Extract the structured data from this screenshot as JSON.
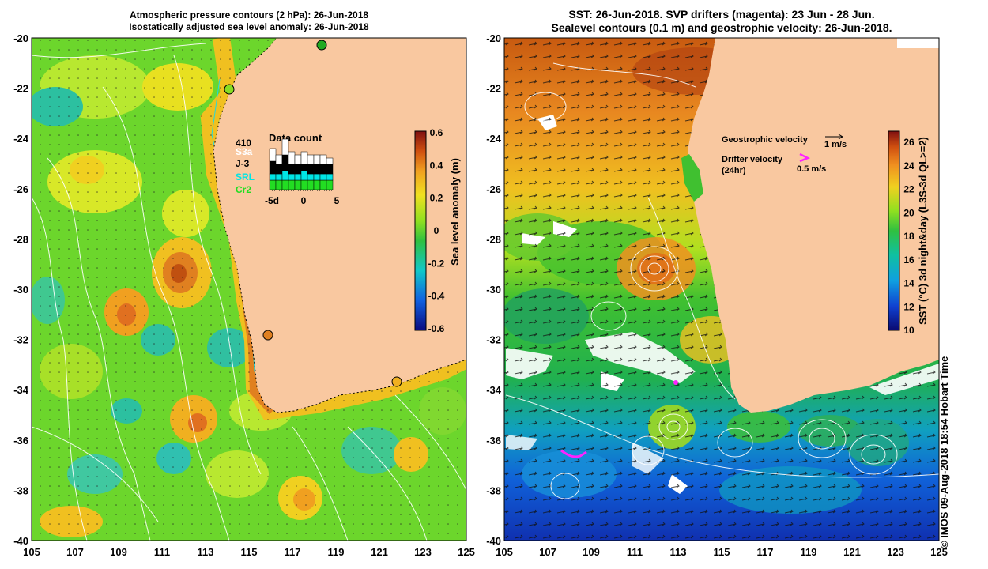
{
  "left_panel": {
    "title_line1": "Atmospheric pressure contours (2 hPa): 26-Jun-2018",
    "title_line2": "Isostatically adjusted sea level anomaly: 26-Jun-2018",
    "lat_labels": [
      "-20",
      "-22",
      "-24",
      "-26",
      "-28",
      "-30",
      "-32",
      "-34",
      "-36",
      "-38",
      "-40"
    ],
    "lon_labels": [
      "105",
      "107",
      "109",
      "111",
      "113",
      "115",
      "117",
      "119",
      "121",
      "123",
      "125"
    ],
    "colorbar": {
      "label": "Sea level anomaly (m)",
      "ticks": [
        "0.6",
        "0.4",
        "0.2",
        "0",
        "-0.2",
        "-0.4",
        "-0.6"
      ]
    },
    "data_count": {
      "title": "Data count",
      "total": "410",
      "legend": [
        {
          "name": "S3a",
          "color": "#ffffff"
        },
        {
          "name": "J-3",
          "color": "#000000"
        },
        {
          "name": "SRL",
          "color": "#00e5e5"
        },
        {
          "name": "Cr2",
          "color": "#22dd22"
        }
      ],
      "axis_labels": [
        "-5d",
        "0",
        "5"
      ],
      "bars": [
        {
          "day": -5,
          "cr2": 3,
          "srl": 2,
          "j3": 4,
          "s3a": 4
        },
        {
          "day": -4,
          "cr2": 3,
          "srl": 2,
          "j3": 3,
          "s3a": 3
        },
        {
          "day": -3,
          "cr2": 3,
          "srl": 3,
          "j3": 5,
          "s3a": 5
        },
        {
          "day": -2,
          "cr2": 3,
          "srl": 2,
          "j3": 3,
          "s3a": 4
        },
        {
          "day": -1,
          "cr2": 3,
          "srl": 2,
          "j3": 3,
          "s3a": 3
        },
        {
          "day": 0,
          "cr2": 3,
          "srl": 3,
          "j3": 2,
          "s3a": 4
        },
        {
          "day": 1,
          "cr2": 3,
          "srl": 2,
          "j3": 3,
          "s3a": 3
        },
        {
          "day": 2,
          "cr2": 3,
          "srl": 2,
          "j3": 3,
          "s3a": 3
        },
        {
          "day": 3,
          "cr2": 3,
          "srl": 2,
          "j3": 3,
          "s3a": 3
        },
        {
          "day": 4,
          "cr2": 3,
          "srl": 2,
          "j3": 3,
          "s3a": 2
        }
      ]
    }
  },
  "right_panel": {
    "title_line1": "SST: 26-Jun-2018. SVP drifters (magenta): 23 Jun - 28 Jun.",
    "title_line2": "Sealevel contours (0.1 m) and geostrophic velocity: 26-Jun-2018.",
    "lat_labels": [
      "-20",
      "-22",
      "-24",
      "-26",
      "-28",
      "-30",
      "-32",
      "-34",
      "-36",
      "-38",
      "-40"
    ],
    "lon_labels": [
      "105",
      "107",
      "109",
      "111",
      "113",
      "115",
      "117",
      "119",
      "121",
      "123",
      "125"
    ],
    "colorbar": {
      "label": "SST (°C) 3d night&day (L3S-3d QL>=2)",
      "ticks": [
        "26",
        "24",
        "22",
        "20",
        "18",
        "16",
        "14",
        "12",
        "10"
      ]
    },
    "geo_velocity_label": "Geostrophic velocity",
    "geo_velocity_scale": "1 m/s",
    "drifter_label_line1": "Drifter velocity",
    "drifter_label_line2": "(24hr)",
    "drifter_scale": "0.5 m/s",
    "credit": "© IMOS 09-Aug-2018 18:54 Hobart Time"
  },
  "colors": {
    "land": "#f9c8a0",
    "magenta": "#ff22ff"
  }
}
